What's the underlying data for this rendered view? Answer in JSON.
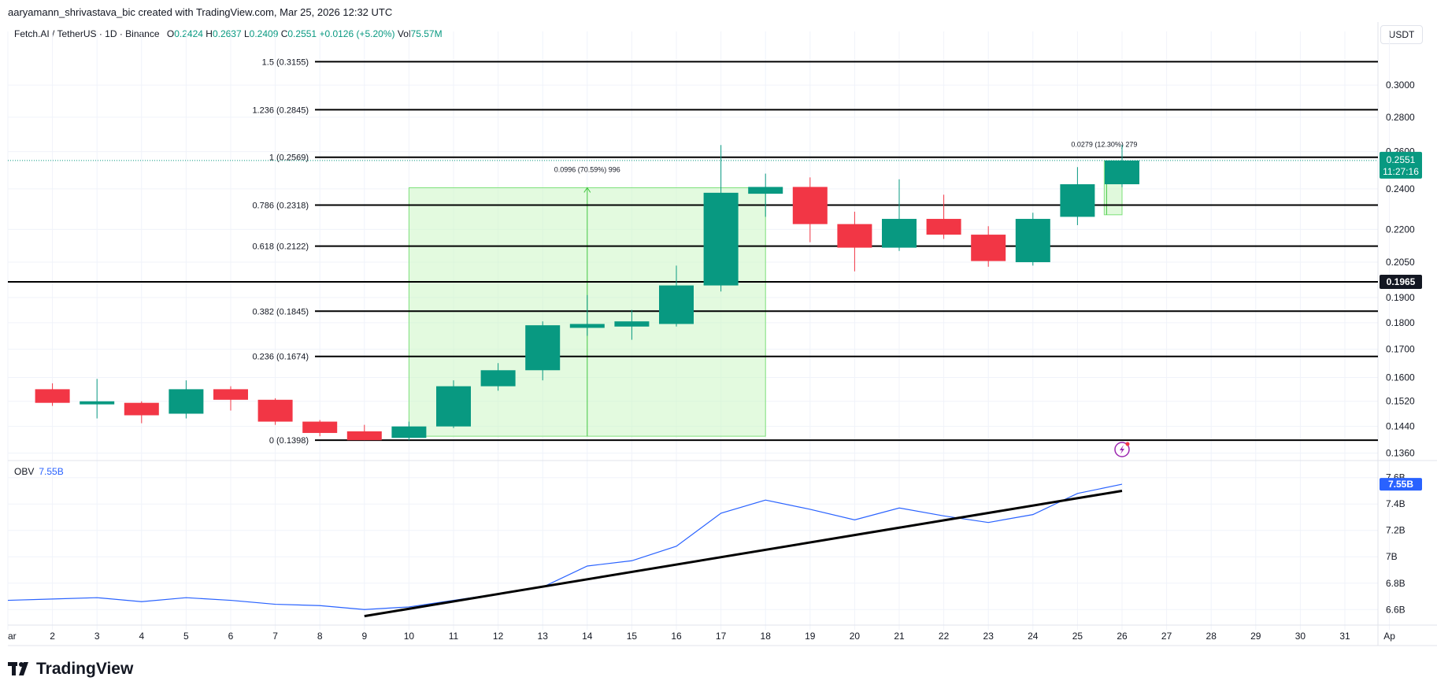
{
  "credit": "aaryamann_shrivastava_bic created with TradingView.com, Mar 25, 2026 12:32 UTC",
  "legend": {
    "symbol": "Fetch.AI / TetherUS · 1D · Binance",
    "o_label": "O",
    "o": "0.2424",
    "h_label": "H",
    "h": "0.2637",
    "l_label": "L",
    "l": "0.2409",
    "c_label": "C",
    "c": "0.2551",
    "change": "+0.0126 (+5.20%)",
    "vol_label": "Vol",
    "vol": "75.57M"
  },
  "currency": "USDT",
  "brand": "TradingView",
  "colors": {
    "up": "#089981",
    "down": "#f23645",
    "obv_line": "#2962ff",
    "fill": "#ccf5c4",
    "fill_border": "#7ee07a"
  },
  "chart_data": [
    {
      "type": "candlestick",
      "x_axis": {
        "labels": [
          "ar",
          "2",
          "3",
          "4",
          "5",
          "6",
          "7",
          "8",
          "9",
          "10",
          "11",
          "12",
          "13",
          "14",
          "15",
          "16",
          "17",
          "18",
          "19",
          "20",
          "21",
          "22",
          "23",
          "24",
          "25",
          "26",
          "27",
          "28",
          "29",
          "30",
          "31",
          "Ap"
        ]
      },
      "y_axis": {
        "scale": "log",
        "range": [
          0.1345,
          0.331
        ],
        "ticks": [
          "0.3000",
          "0.2800",
          "0.2600",
          "0.2400",
          "0.2200",
          "0.2050",
          "0.1900",
          "0.1800",
          "0.1700",
          "0.1600",
          "0.1520",
          "0.1440",
          "0.1360"
        ]
      },
      "candles": [
        {
          "x": 1,
          "o": 0.156,
          "h": 0.158,
          "l": 0.1505,
          "c": 0.1515
        },
        {
          "x": 2,
          "o": 0.151,
          "h": 0.1595,
          "l": 0.1465,
          "c": 0.152
        },
        {
          "x": 3,
          "o": 0.1515,
          "h": 0.152,
          "l": 0.145,
          "c": 0.1475
        },
        {
          "x": 4,
          "o": 0.148,
          "h": 0.159,
          "l": 0.1465,
          "c": 0.156
        },
        {
          "x": 5,
          "o": 0.156,
          "h": 0.157,
          "l": 0.149,
          "c": 0.1525
        },
        {
          "x": 6,
          "o": 0.1525,
          "h": 0.153,
          "l": 0.1445,
          "c": 0.1455
        },
        {
          "x": 7,
          "o": 0.1455,
          "h": 0.146,
          "l": 0.141,
          "c": 0.142
        },
        {
          "x": 8,
          "o": 0.1425,
          "h": 0.1445,
          "l": 0.1398,
          "c": 0.1398
        },
        {
          "x": 9,
          "o": 0.1405,
          "h": 0.1455,
          "l": 0.1398,
          "c": 0.144
        },
        {
          "x": 10,
          "o": 0.144,
          "h": 0.159,
          "l": 0.1435,
          "c": 0.157
        },
        {
          "x": 11,
          "o": 0.157,
          "h": 0.165,
          "l": 0.1555,
          "c": 0.1625
        },
        {
          "x": 12,
          "o": 0.1625,
          "h": 0.1805,
          "l": 0.159,
          "c": 0.179
        },
        {
          "x": 13,
          "o": 0.178,
          "h": 0.191,
          "l": 0.175,
          "c": 0.1795
        },
        {
          "x": 14,
          "o": 0.1785,
          "h": 0.185,
          "l": 0.1735,
          "c": 0.1805
        },
        {
          "x": 15,
          "o": 0.1795,
          "h": 0.2035,
          "l": 0.1785,
          "c": 0.195
        },
        {
          "x": 16,
          "o": 0.195,
          "h": 0.2637,
          "l": 0.1925,
          "c": 0.238
        },
        {
          "x": 17,
          "o": 0.2375,
          "h": 0.248,
          "l": 0.226,
          "c": 0.241
        },
        {
          "x": 18,
          "o": 0.241,
          "h": 0.246,
          "l": 0.214,
          "c": 0.2225
        },
        {
          "x": 19,
          "o": 0.2225,
          "h": 0.2285,
          "l": 0.201,
          "c": 0.2115
        },
        {
          "x": 20,
          "o": 0.2115,
          "h": 0.245,
          "l": 0.21,
          "c": 0.225
        },
        {
          "x": 21,
          "o": 0.225,
          "h": 0.237,
          "l": 0.2155,
          "c": 0.2175
        },
        {
          "x": 22,
          "o": 0.2175,
          "h": 0.2215,
          "l": 0.203,
          "c": 0.2055
        },
        {
          "x": 23,
          "o": 0.205,
          "h": 0.228,
          "l": 0.2035,
          "c": 0.225
        },
        {
          "x": 24,
          "o": 0.226,
          "h": 0.2515,
          "l": 0.222,
          "c": 0.2424
        },
        {
          "x": 25,
          "o": 0.2424,
          "h": 0.2637,
          "l": 0.2409,
          "c": 0.2551
        }
      ],
      "fib_levels": [
        {
          "label": "1.5 (0.3155)",
          "value": 0.3155
        },
        {
          "label": "1.236 (0.2845)",
          "value": 0.2845
        },
        {
          "label": "1 (0.2569)",
          "value": 0.2569
        },
        {
          "label": "0.786 (0.2318)",
          "value": 0.2318
        },
        {
          "label": "0.618 (0.2122)",
          "value": 0.2122
        },
        {
          "label": "0.382 (0.1845)",
          "value": 0.1845
        },
        {
          "label": "0.236 (0.1674)",
          "value": 0.1674
        },
        {
          "label": "0 (0.1398)",
          "value": 0.1398
        }
      ],
      "support_line": {
        "value": 0.1965,
        "label": "0.1965"
      },
      "measures": [
        {
          "label": "0.0996 (70.59%) 996",
          "x_from": 9,
          "x_to": 17,
          "y_from": 0.141,
          "y_to": 0.2406
        },
        {
          "label": "0.0279 (12.30%) 279",
          "x_from": 24.6,
          "x_to": 25.0,
          "y_from": 0.227,
          "y_to": 0.2549
        }
      ],
      "last_price": {
        "value": 0.2551,
        "label": "0.2551",
        "countdown": "11:27:16"
      }
    },
    {
      "type": "line",
      "title": "OBV",
      "last_value_label": "7.55B",
      "y_axis": {
        "range": [
          6.53,
          7.64
        ],
        "ticks": [
          "7.6B",
          "7.4B",
          "7.2B",
          "7B",
          "6.8B",
          "6.6B"
        ]
      },
      "series": [
        {
          "name": "OBV",
          "x": [
            0,
            1,
            2,
            3,
            4,
            5,
            6,
            7,
            8,
            9,
            10,
            11,
            12,
            13,
            14,
            15,
            16,
            17,
            18,
            19,
            20,
            21,
            22,
            23,
            24,
            25
          ],
          "values": [
            6.67,
            6.68,
            6.69,
            6.66,
            6.69,
            6.67,
            6.64,
            6.63,
            6.6,
            6.62,
            6.67,
            6.72,
            6.77,
            6.93,
            6.97,
            7.08,
            7.33,
            7.43,
            7.36,
            7.28,
            7.37,
            7.31,
            7.26,
            7.32,
            7.48,
            7.55
          ]
        }
      ],
      "trendline": {
        "x_from": 8,
        "y_from": 6.55,
        "x_to": 25,
        "y_to": 7.5
      }
    }
  ]
}
